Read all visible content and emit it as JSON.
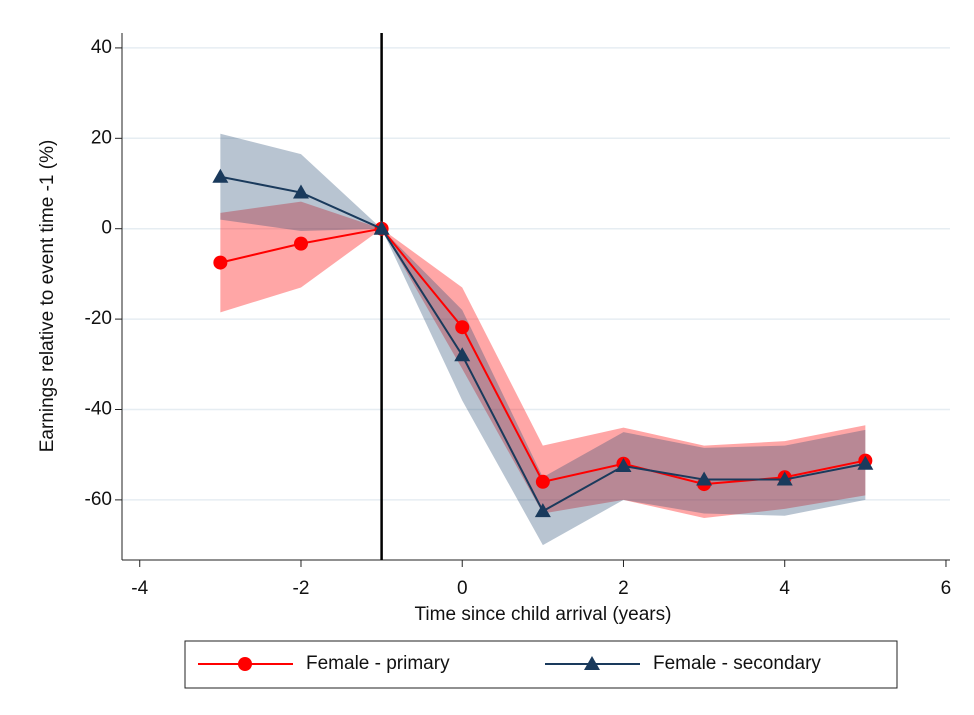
{
  "chart_data": {
    "type": "line",
    "x_label": "Time since child arrival (years)",
    "y_label": "Earnings relative to event time -1 (%)",
    "x": [
      -3,
      -2,
      -1,
      0,
      1,
      2,
      3,
      4,
      5
    ],
    "series": [
      {
        "name": "Female - primary",
        "color": "#ff0000",
        "band_color": "rgba(255,0,0,0.35)",
        "marker": "circle",
        "values": [
          -7.5,
          -3.3,
          0,
          -21.8,
          -56,
          -52,
          -56.5,
          -55,
          -51.3
        ],
        "lower": [
          -18.5,
          -13,
          0,
          -31,
          -63,
          -60,
          -64,
          -62,
          -59
        ],
        "upper": [
          3.5,
          6,
          0,
          -13,
          -48,
          -44,
          -48,
          -47,
          -43.5
        ]
      },
      {
        "name": "Female - secondary",
        "color": "#1a3a5c",
        "band_color": "rgba(40,75,115,0.33)",
        "marker": "triangle",
        "values": [
          11.5,
          8,
          0,
          -28,
          -62.5,
          -52.5,
          -55.5,
          -55.5,
          -52
        ],
        "lower": [
          2,
          -0.5,
          0,
          -38,
          -70,
          -60,
          -63,
          -63.5,
          -60
        ],
        "upper": [
          21,
          16.5,
          0,
          -18,
          -55,
          -45,
          -48.5,
          -48,
          -44.5
        ]
      }
    ],
    "vline": -1,
    "xlim": [
      -4.22,
      6.05
    ],
    "xticks": [
      -4,
      -2,
      0,
      2,
      4,
      6
    ],
    "ylim": [
      -73.3,
      43.3
    ],
    "yticks": [
      -60,
      -40,
      -20,
      0,
      20,
      40
    ],
    "grid": true,
    "legend": "bottom"
  }
}
